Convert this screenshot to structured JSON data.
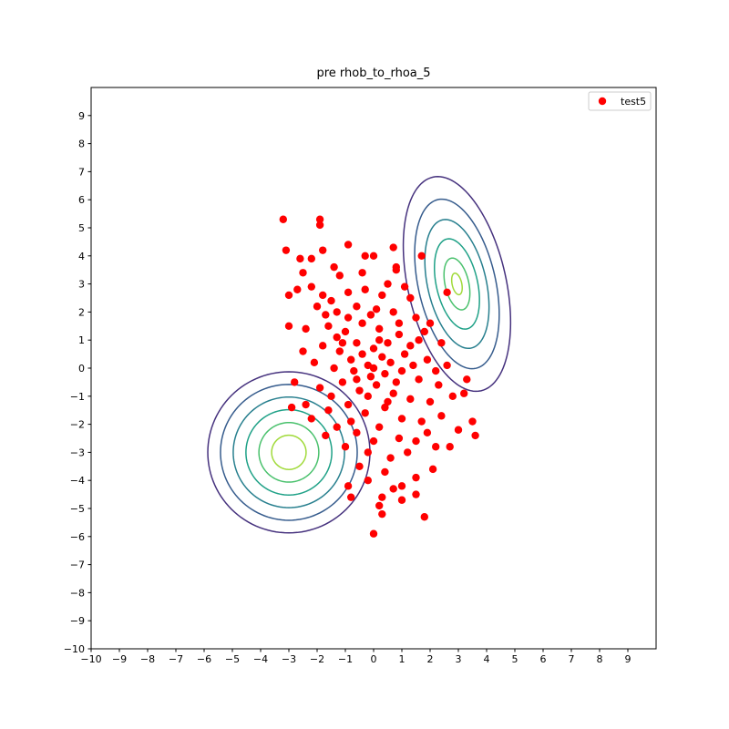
{
  "chart_data": {
    "type": "scatter",
    "title": "pre rhob_to_rhoa_5",
    "xlim": [
      -10,
      10
    ],
    "ylim": [
      -10,
      10
    ],
    "xticks": [
      {
        "value": -10,
        "label": "−10"
      },
      {
        "value": -9,
        "label": "−9"
      },
      {
        "value": -8,
        "label": "−8"
      },
      {
        "value": -7,
        "label": "−7"
      },
      {
        "value": -6,
        "label": "−6"
      },
      {
        "value": -5,
        "label": "−5"
      },
      {
        "value": -4,
        "label": "−4"
      },
      {
        "value": -3,
        "label": "−3"
      },
      {
        "value": -2,
        "label": "−2"
      },
      {
        "value": -1,
        "label": "−1"
      },
      0,
      1,
      2,
      3,
      4,
      5,
      6,
      7,
      8,
      9
    ],
    "yticks": [
      {
        "value": -10,
        "label": "−10"
      },
      {
        "value": -9,
        "label": "−9"
      },
      {
        "value": -8,
        "label": "−8"
      },
      {
        "value": -7,
        "label": "−7"
      },
      {
        "value": -6,
        "label": "−6"
      },
      {
        "value": -5,
        "label": "−5"
      },
      {
        "value": -4,
        "label": "−4"
      },
      {
        "value": -3,
        "label": "−3"
      },
      {
        "value": -2,
        "label": "−2"
      },
      {
        "value": -1,
        "label": "−1"
      },
      0,
      1,
      2,
      3,
      4,
      5,
      6,
      7,
      8,
      9
    ],
    "legend": "upper right",
    "series": [
      {
        "name": "test5",
        "color": "#ff0000",
        "x": [
          -3.2,
          -1.9,
          -1.9,
          -3.1,
          -1.8,
          -0.9,
          0.7,
          0,
          -0.3,
          1.7,
          0.8,
          -2.6,
          -2.2,
          -2.5,
          2.6,
          -3,
          -3,
          3.3,
          3.2,
          3.6,
          3.5,
          3,
          2.7,
          2.2,
          2.1,
          1.8,
          0,
          0.3,
          0.2,
          0.3,
          -0.8,
          -0.2,
          0.7,
          1.5,
          1,
          1.5,
          1,
          -0.9,
          -2.8,
          -2.9,
          -2.4,
          -1.4,
          -1.2,
          -0.4,
          0.8,
          -2.2,
          -2.7,
          -1.8,
          -0.9,
          0.3,
          1.3,
          -2,
          -1.3,
          -0.6,
          0.1,
          0.7,
          1.5,
          2,
          -2.4,
          -1.6,
          -1,
          -0.4,
          0.2,
          0.9,
          1.6,
          2.4,
          -1.8,
          -1.2,
          -0.6,
          0,
          0.5,
          1.1,
          1.9,
          2.6,
          -2.1,
          -1.4,
          -0.8,
          -0.2,
          0.4,
          1,
          1.6,
          2.3,
          -1.9,
          -1.1,
          -0.5,
          0.1,
          0.7,
          1.3,
          2,
          2.8,
          -1.6,
          -0.9,
          -0.3,
          0.4,
          1,
          1.7,
          2.4,
          -1.3,
          -0.6,
          0.2,
          0.9,
          1.5,
          -1,
          -0.2,
          0.6,
          1.2,
          -0.5,
          0.4,
          -1.5,
          -0.7,
          0.3,
          -0.1,
          0.6,
          -0.4,
          0.2,
          -0.9,
          0.8,
          -1.1,
          1.3,
          -0.3,
          -1.7,
          0.5,
          1.1,
          -0.8,
          0,
          1.9,
          -2.2,
          -1.7,
          2.2,
          1.4,
          -1.3,
          -0.1,
          0.9,
          -2.5,
          -0.2,
          0.5,
          -0.6,
          1.8,
          -1.5,
          0
        ],
        "values": [
          5.3,
          5.3,
          5.1,
          4.2,
          4.2,
          4.4,
          4.3,
          4,
          4,
          4,
          3.6,
          3.9,
          3.9,
          3.4,
          2.7,
          2.6,
          1.5,
          -0.4,
          -0.9,
          -2.4,
          -1.9,
          -2.2,
          -2.8,
          -2.8,
          -3.6,
          -5.3,
          -5.9,
          -5.2,
          -4.9,
          -4.6,
          -4.6,
          -4,
          -4.3,
          -4.5,
          -4.7,
          -3.9,
          -4.2,
          -4.2,
          -0.5,
          -1.4,
          -1.3,
          3.6,
          3.3,
          3.4,
          3.5,
          2.9,
          2.8,
          2.6,
          2.7,
          2.6,
          2.5,
          2.2,
          2,
          2.2,
          2.1,
          2,
          1.8,
          1.6,
          1.4,
          1.5,
          1.3,
          1.6,
          1.4,
          1.2,
          1,
          0.9,
          0.8,
          0.6,
          0.9,
          0.7,
          0.9,
          0.5,
          0.3,
          0.1,
          0.2,
          0,
          0.3,
          0.1,
          -0.2,
          -0.1,
          -0.4,
          -0.6,
          -0.7,
          -0.5,
          -0.8,
          -0.6,
          -0.9,
          -1.1,
          -1.2,
          -1,
          -1.5,
          -1.3,
          -1.6,
          -1.4,
          -1.8,
          -1.9,
          -1.7,
          -2.1,
          -2.3,
          -2.1,
          -2.5,
          -2.6,
          -2.8,
          -3,
          -3.2,
          -3,
          -3.5,
          -3.7,
          -1,
          -0.1,
          0.4,
          -0.3,
          0.2,
          0.5,
          1,
          1.8,
          -0.5,
          0.9,
          0.8,
          2.8,
          1.9,
          3,
          2.9,
          -1.9,
          -2.6,
          -2.3,
          -1.8,
          -2.4,
          -0.1,
          0.1,
          1.1,
          1.9,
          1.6,
          0.6,
          -1,
          -1.2,
          -0.4,
          1.3,
          2.4,
          0
        ]
      }
    ],
    "contours": [
      {
        "cx": -3,
        "cy": -3,
        "rx": 2.87,
        "ry": 2.87,
        "angle": 0,
        "color": "#46327e"
      },
      {
        "cx": -3,
        "cy": -3,
        "rx": 2.42,
        "ry": 2.42,
        "angle": 0,
        "color": "#365c8d"
      },
      {
        "cx": -3,
        "cy": -3,
        "rx": 1.97,
        "ry": 1.97,
        "angle": 0,
        "color": "#277f8e"
      },
      {
        "cx": -3,
        "cy": -3,
        "rx": 1.52,
        "ry": 1.52,
        "angle": 0,
        "color": "#1fa187"
      },
      {
        "cx": -3,
        "cy": -3,
        "rx": 1.06,
        "ry": 1.06,
        "angle": 0,
        "color": "#4ac16d"
      },
      {
        "cx": -3,
        "cy": -3,
        "rx": 0.61,
        "ry": 0.61,
        "angle": 0,
        "color": "#a0da39"
      },
      {
        "cx": 2.95,
        "cy": 3,
        "rx": 1.74,
        "ry": 3.9,
        "angle": 12.6,
        "color": "#46327e"
      },
      {
        "cx": 2.95,
        "cy": 3,
        "rx": 1.37,
        "ry": 3.08,
        "angle": 12.6,
        "color": "#365c8d"
      },
      {
        "cx": 2.95,
        "cy": 3,
        "rx": 1.04,
        "ry": 2.34,
        "angle": 12.6,
        "color": "#277f8e"
      },
      {
        "cx": 2.95,
        "cy": 3,
        "rx": 0.73,
        "ry": 1.64,
        "angle": 12.6,
        "color": "#1fa187"
      },
      {
        "cx": 2.95,
        "cy": 3,
        "rx": 0.42,
        "ry": 0.94,
        "angle": 12.6,
        "color": "#4ac16d"
      },
      {
        "cx": 2.95,
        "cy": 3,
        "rx": 0.17,
        "ry": 0.39,
        "angle": 12.6,
        "color": "#a0da39"
      }
    ]
  }
}
